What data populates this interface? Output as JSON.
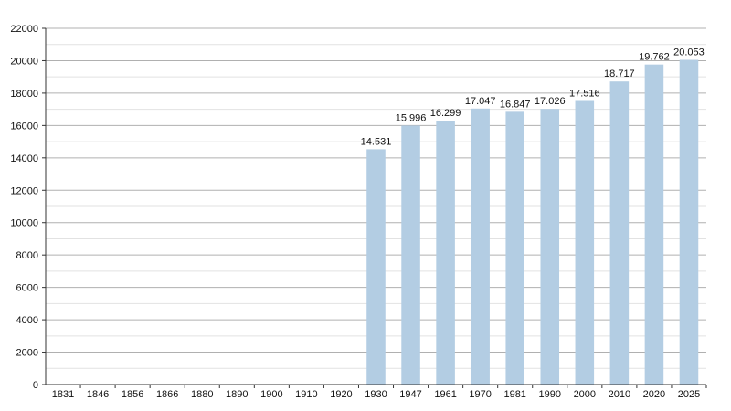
{
  "chart_data": {
    "type": "bar",
    "categories": [
      "1831",
      "1846",
      "1856",
      "1866",
      "1880",
      "1890",
      "1900",
      "1910",
      "1920",
      "1930",
      "1947",
      "1961",
      "1970",
      "1981",
      "1990",
      "2000",
      "2010",
      "2020",
      "2025"
    ],
    "values": [
      null,
      null,
      null,
      null,
      null,
      null,
      null,
      null,
      null,
      14531,
      15996,
      16299,
      17047,
      16847,
      17026,
      17516,
      18717,
      19762,
      20053
    ],
    "value_labels": [
      "",
      "",
      "",
      "",
      "",
      "",
      "",
      "",
      "",
      "14.531",
      "15.996",
      "16.299",
      "17.047",
      "16.847",
      "17.026",
      "17.516",
      "18.717",
      "19.762",
      "20.053"
    ],
    "y_ticks": [
      "0",
      "2000",
      "4000",
      "6000",
      "8000",
      "10000",
      "12000",
      "14000",
      "16000",
      "18000",
      "20000",
      "22000"
    ],
    "ylim": [
      0,
      22000
    ],
    "minor_step": 1000,
    "grid": true,
    "bar_color": "#b3cde3",
    "major_grid_color": "#b0b0b0",
    "minor_grid_color": "#e2e2e2"
  }
}
